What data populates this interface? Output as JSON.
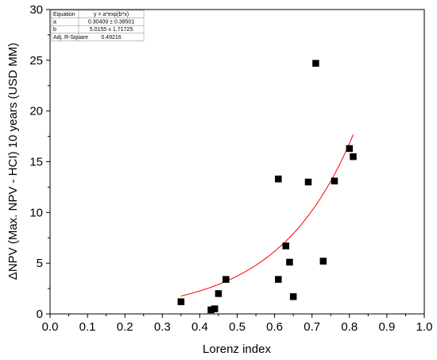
{
  "chart_data": {
    "type": "scatter",
    "xlabel": "Lorenz index",
    "ylabel": "ΔNPV (Max. NPV - HCI)  10 years (USD MM)",
    "xlim": [
      0.0,
      1.0
    ],
    "ylim": [
      0,
      30
    ],
    "x_ticks": [
      "0.0",
      "0.1",
      "0.2",
      "0.3",
      "0.4",
      "0.5",
      "0.6",
      "0.7",
      "0.8",
      "0.9",
      "1.0"
    ],
    "y_ticks": [
      "0",
      "5",
      "10",
      "15",
      "20",
      "25",
      "30"
    ],
    "grid": false,
    "series": [
      {
        "type": "scatter",
        "marker": "square",
        "color": "#000000",
        "points": [
          {
            "x": 0.35,
            "y": 1.2
          },
          {
            "x": 0.43,
            "y": 0.4
          },
          {
            "x": 0.44,
            "y": 0.5
          },
          {
            "x": 0.45,
            "y": 2.0
          },
          {
            "x": 0.47,
            "y": 3.4
          },
          {
            "x": 0.61,
            "y": 13.3
          },
          {
            "x": 0.61,
            "y": 3.4
          },
          {
            "x": 0.63,
            "y": 6.7
          },
          {
            "x": 0.64,
            "y": 5.1
          },
          {
            "x": 0.65,
            "y": 1.7
          },
          {
            "x": 0.69,
            "y": 13.0
          },
          {
            "x": 0.71,
            "y": 24.7
          },
          {
            "x": 0.73,
            "y": 5.2
          },
          {
            "x": 0.76,
            "y": 13.1
          },
          {
            "x": 0.8,
            "y": 16.3
          },
          {
            "x": 0.81,
            "y": 15.5
          }
        ]
      },
      {
        "type": "line",
        "color": "#ff0000",
        "function": "exp",
        "a": 0.30409,
        "b": 5.0155,
        "x_range": [
          0.35,
          0.81
        ]
      }
    ],
    "stats_table": [
      {
        "label": "Equation",
        "value": "y = a*exp(b*x)"
      },
      {
        "label": "a",
        "value": "0.30409 ± 0.38501"
      },
      {
        "label": "b",
        "value": "5.0155 ± 1.71725"
      },
      {
        "label": "Adj. R-Square",
        "value": "0.49216"
      }
    ]
  }
}
